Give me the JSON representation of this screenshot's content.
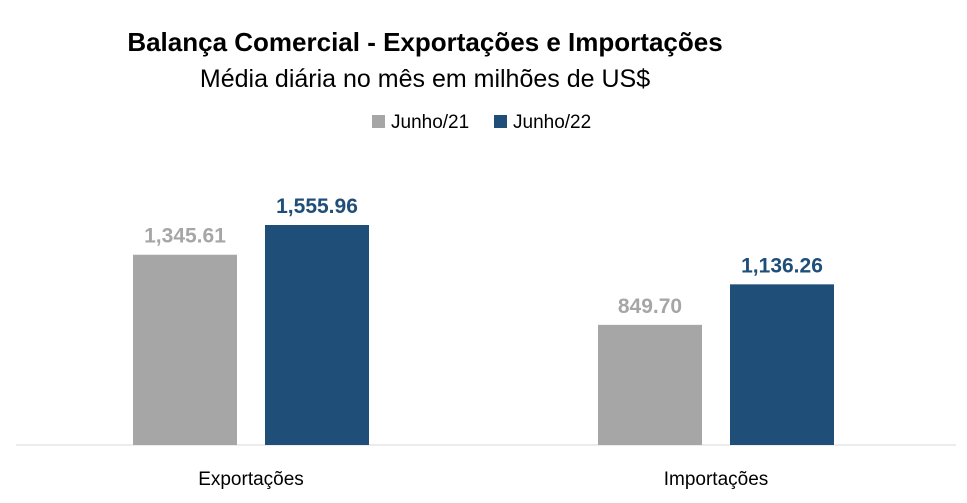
{
  "chart_data": {
    "type": "bar",
    "title": "Balança Comercial - Exportações e Importações",
    "subtitle": "Média diária no mês em milhões de US$",
    "categories": [
      "Exportações",
      "Importações"
    ],
    "series": [
      {
        "name": "Junho/21",
        "values": [
          1345.61,
          849.7
        ],
        "labels": [
          "1,345.61",
          "849.70"
        ],
        "color": "#A6A6A6"
      },
      {
        "name": "Junho/22",
        "values": [
          1555.96,
          1136.26
        ],
        "labels": [
          "1,555.96",
          "1,136.26"
        ],
        "color": "#1F4E79"
      }
    ],
    "ylim": [
      0,
      1800
    ],
    "grid": false,
    "legend_position": "top-center",
    "xlabel": "",
    "ylabel": ""
  }
}
